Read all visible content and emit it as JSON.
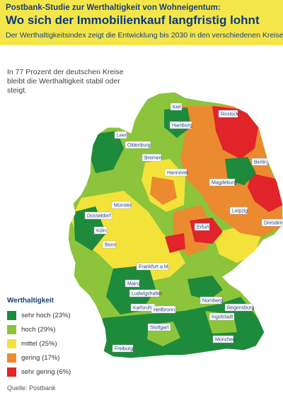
{
  "header": {
    "kicker": "Postbank-Studie zur Werthaltigkeit von Wohneigentum:",
    "title": "Wo sich der Immobilienkauf langfristig lohnt",
    "subtitle": "Der Werthaltigkeitsindex zeigt die Entwicklung bis 2030 in den verschiedenen Kreisen"
  },
  "intro": "In 77 Prozent der deutschen Kreise bleibt die Werthaltigkeit stabil oder steigt.",
  "legend": {
    "title": "Werthaltigkeit",
    "items": [
      {
        "label": "sehr hoch (23%)",
        "color": "#1e8a3c",
        "share": 23
      },
      {
        "label": "hoch (29%)",
        "color": "#8cc43c",
        "share": 29
      },
      {
        "label": "mittel (25%)",
        "color": "#f3e23a",
        "share": 25
      },
      {
        "label": "gering (17%)",
        "color": "#ec8a30",
        "share": 17
      },
      {
        "label": "sehr gering (6%)",
        "color": "#e0242a",
        "share": 6
      }
    ]
  },
  "cities": {
    "kiel": "Kiel",
    "rostock": "Rostock",
    "hamburg": "Hamburg",
    "leer": "Leer",
    "oldenburg": "Oldenburg",
    "bremen": "Bremen",
    "berlin": "Berlin",
    "hannover": "Hannover",
    "magdeburg": "Magdeburg",
    "muenster": "Münster",
    "leipzig": "Leipzig",
    "duesseldorf": "Düsseldorf",
    "dresden": "Dresden",
    "koeln": "Köln",
    "erfurt": "Erfurt",
    "bonn": "Bonn",
    "frankfurt": "Frankfurt a.M.",
    "mainz": "Mainz",
    "ludwigshafen": "Ludwigshafen",
    "nuernberg": "Nürnberg",
    "regensburg": "Regensburg",
    "karlsruhe": "Karlsruhe",
    "heilbronn": "Heilbronn",
    "ingolstadt": "Ingolstadt",
    "stuttgart": "Stuttgart",
    "muenchen": "München",
    "freiburg": "Freiburg"
  },
  "source": "Quelle: Postbank"
}
